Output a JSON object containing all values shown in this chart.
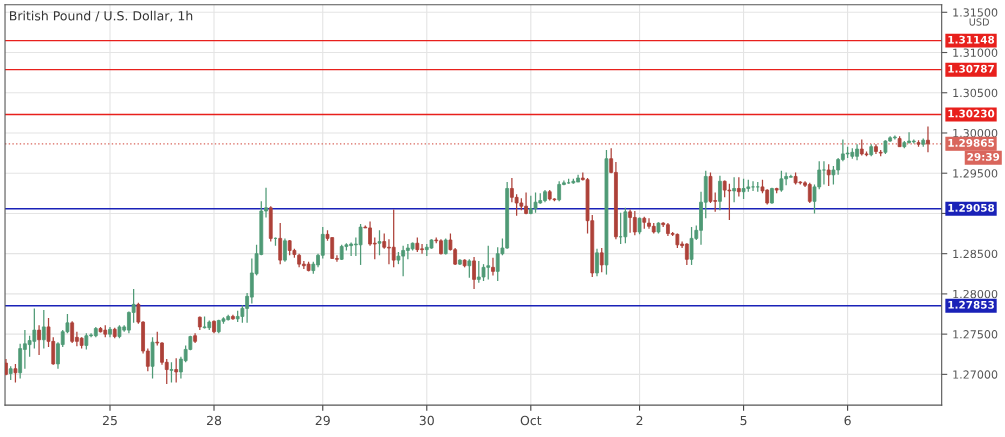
{
  "chart_data": {
    "type": "candlestick",
    "title": "British Pound / U.S. Dollar, 1h",
    "ylabel": "USD",
    "annotations": [
      "29:39"
    ],
    "grid": true,
    "categories": [
      null,
      null,
      null,
      null,
      null,
      null,
      null,
      null,
      null,
      null,
      null,
      null,
      null,
      null,
      null,
      null,
      null,
      null,
      null,
      null,
      null,
      null,
      "25",
      null,
      null,
      null,
      null,
      null,
      null,
      null,
      null,
      null,
      null,
      null,
      null,
      null,
      null,
      null,
      null,
      null,
      null,
      null,
      null,
      null,
      "28",
      null,
      null,
      null,
      null,
      null,
      null,
      null,
      null,
      null,
      null,
      null,
      null,
      null,
      null,
      null,
      null,
      null,
      null,
      null,
      null,
      null,
      null,
      "29",
      null,
      null,
      null,
      null,
      null,
      null,
      null,
      null,
      null,
      null,
      null,
      null,
      null,
      null,
      null,
      null,
      null,
      null,
      null,
      null,
      null,
      "30",
      null,
      null,
      null,
      null,
      null,
      null,
      null,
      null,
      null,
      null,
      null,
      null,
      null,
      null,
      null,
      null,
      null,
      null,
      null,
      null,
      null,
      "Oct",
      null,
      null,
      null,
      null,
      null,
      null,
      null,
      null,
      null,
      null,
      null,
      null,
      null,
      null,
      null,
      null,
      null,
      null,
      null,
      null,
      null,
      null,
      "2",
      null,
      null,
      null,
      null,
      null,
      null,
      null,
      null,
      null,
      null,
      null,
      null,
      null,
      null,
      null,
      null,
      null,
      null,
      null,
      null,
      null,
      "5",
      null,
      null,
      null,
      null,
      null,
      null,
      null,
      null,
      null,
      null,
      null,
      null,
      null,
      null,
      null,
      null,
      null,
      null,
      null,
      null,
      null,
      "6",
      null,
      null,
      null,
      null,
      null,
      null,
      null,
      null,
      null,
      null,
      null,
      null,
      null,
      null,
      null,
      null,
      null
    ],
    "ylim": [
      1.26618,
      1.31593
    ],
    "yticks": [
      {
        "value": 1.27,
        "label": "1.27000"
      },
      {
        "value": 1.275,
        "label": "1.27500"
      },
      {
        "value": 1.28,
        "label": "1.28000"
      },
      {
        "value": 1.285,
        "label": "1.28500"
      },
      {
        "value": 1.29,
        "label": null
      },
      {
        "value": 1.295,
        "label": "1.29500"
      },
      {
        "value": 1.3,
        "label": "1.30000"
      },
      {
        "value": 1.305,
        "label": "1.30500"
      },
      {
        "value": 1.31,
        "label": "1.31000"
      },
      {
        "value": 1.315,
        "label": "1.31500"
      }
    ],
    "ref_lines": [
      {
        "axis": "y",
        "value": 1.31148,
        "label": "1.31148",
        "color": "#e8201c"
      },
      {
        "axis": "y",
        "value": 1.30787,
        "label": "1.30787",
        "color": "#e8201c"
      },
      {
        "axis": "y",
        "value": 1.3023,
        "label": "1.30230",
        "color": "#e8201c"
      },
      {
        "axis": "y",
        "value": 1.29865,
        "label": "1.29865",
        "color": "#d9665c",
        "line_style": "dotted"
      },
      {
        "axis": "y",
        "value": 1.29058,
        "label": "1.29058",
        "color": "#1a22b8"
      },
      {
        "axis": "y",
        "value": 1.27853,
        "label": "1.27853",
        "color": "#1a22b8"
      }
    ],
    "ohlc": [
      [
        1.2714,
        1.2719,
        1.2699,
        1.27
      ],
      [
        1.2701,
        1.271,
        1.2693,
        1.2707
      ],
      [
        1.2707,
        1.2713,
        1.269,
        1.2702
      ],
      [
        1.2702,
        1.2738,
        1.2695,
        1.2732
      ],
      [
        1.2731,
        1.2755,
        1.2707,
        1.2738
      ],
      [
        1.2737,
        1.2748,
        1.2722,
        1.2742
      ],
      [
        1.2741,
        1.2782,
        1.2732,
        1.2755
      ],
      [
        1.2755,
        1.2761,
        1.2724,
        1.2743
      ],
      [
        1.2743,
        1.278,
        1.2732,
        1.2759
      ],
      [
        1.2759,
        1.277,
        1.2734,
        1.2741
      ],
      [
        1.2741,
        1.2746,
        1.2712,
        1.2713
      ],
      [
        1.2713,
        1.274,
        1.2707,
        1.2738
      ],
      [
        1.2737,
        1.2755,
        1.2734,
        1.2753
      ],
      [
        1.2753,
        1.2775,
        1.2751,
        1.2764
      ],
      [
        1.2764,
        1.2766,
        1.2739,
        1.2741
      ],
      [
        1.2746,
        1.2753,
        1.2735,
        1.2741
      ],
      [
        1.2745,
        1.2746,
        1.2732,
        1.2736
      ],
      [
        1.2736,
        1.2751,
        1.2731,
        1.2748
      ],
      [
        1.2748,
        1.2751,
        1.2746,
        1.2749
      ],
      [
        1.2748,
        1.2759,
        1.2746,
        1.2757
      ],
      [
        1.2757,
        1.2759,
        1.2752,
        1.2753
      ],
      [
        1.2755,
        1.2761,
        1.2746,
        1.275
      ],
      [
        1.275,
        1.2759,
        1.2746,
        1.2756
      ],
      [
        1.2756,
        1.2758,
        1.2745,
        1.2747
      ],
      [
        1.2747,
        1.2761,
        1.2745,
        1.2759
      ],
      [
        1.2755,
        1.2761,
        1.2753,
        1.2759
      ],
      [
        1.2755,
        1.2778,
        1.2751,
        1.2777
      ],
      [
        1.2777,
        1.2806,
        1.2764,
        1.2787
      ],
      [
        1.2787,
        1.2789,
        1.2763,
        1.2765
      ],
      [
        1.2765,
        1.2766,
        1.2726,
        1.2729
      ],
      [
        1.2729,
        1.2732,
        1.2704,
        1.271
      ],
      [
        1.271,
        1.2746,
        1.2695,
        1.274
      ],
      [
        1.274,
        1.2753,
        1.2736,
        1.2739
      ],
      [
        1.2739,
        1.274,
        1.2712,
        1.2715
      ],
      [
        1.2715,
        1.2719,
        1.2688,
        1.2706
      ],
      [
        1.2705,
        1.2715,
        1.269,
        1.2706
      ],
      [
        1.2706,
        1.272,
        1.269,
        1.2703
      ],
      [
        1.2703,
        1.2722,
        1.2695,
        1.2719
      ],
      [
        1.2717,
        1.2736,
        1.2715,
        1.2731
      ],
      [
        1.2731,
        1.2748,
        1.273,
        1.2747
      ],
      [
        1.2748,
        1.2751,
        1.2739,
        1.2741
      ],
      [
        1.2771,
        1.2772,
        1.2755,
        1.2759
      ],
      [
        1.2758,
        1.2772,
        1.2757,
        1.2759
      ],
      [
        1.2758,
        1.2767,
        1.2755,
        1.2765
      ],
      [
        1.2766,
        1.2767,
        1.2751,
        1.2753
      ],
      [
        1.2753,
        1.2768,
        1.2751,
        1.2767
      ],
      [
        1.2766,
        1.2771,
        1.2763,
        1.2769
      ],
      [
        1.2768,
        1.2774,
        1.2767,
        1.2772
      ],
      [
        1.2772,
        1.2774,
        1.2768,
        1.2769
      ],
      [
        1.2769,
        1.2779,
        1.2765,
        1.2772
      ],
      [
        1.2772,
        1.2786,
        1.2764,
        1.2782
      ],
      [
        1.2782,
        1.2801,
        1.2764,
        1.2797
      ],
      [
        1.2796,
        1.2844,
        1.2788,
        1.2826
      ],
      [
        1.2825,
        1.2861,
        1.2823,
        1.285
      ],
      [
        1.2849,
        1.2915,
        1.2848,
        1.2903
      ],
      [
        1.2903,
        1.2932,
        1.2895,
        1.2907
      ],
      [
        1.2907,
        1.2909,
        1.2865,
        1.2869
      ],
      [
        1.2869,
        1.287,
        1.286,
        1.2869
      ],
      [
        1.2869,
        1.2888,
        1.2837,
        1.2842
      ],
      [
        1.2842,
        1.2869,
        1.284,
        1.2866
      ],
      [
        1.2866,
        1.2867,
        1.2848,
        1.2854
      ],
      [
        1.2854,
        1.2856,
        1.2845,
        1.2849
      ],
      [
        1.2848,
        1.285,
        1.2833,
        1.2837
      ],
      [
        1.2837,
        1.2841,
        1.2831,
        1.2835
      ],
      [
        1.2837,
        1.284,
        1.2828,
        1.2829
      ],
      [
        1.2829,
        1.284,
        1.2825,
        1.2837
      ],
      [
        1.2836,
        1.285,
        1.2833,
        1.2848
      ],
      [
        1.2848,
        1.2883,
        1.2844,
        1.2874
      ],
      [
        1.2874,
        1.2879,
        1.2866,
        1.2869
      ],
      [
        1.287,
        1.287,
        1.2844,
        1.2844
      ],
      [
        1.2844,
        1.2848,
        1.284,
        1.2843
      ],
      [
        1.2843,
        1.2861,
        1.2842,
        1.2859
      ],
      [
        1.2859,
        1.2863,
        1.2854,
        1.2861
      ],
      [
        1.286,
        1.2864,
        1.2847,
        1.2862
      ],
      [
        1.2861,
        1.287,
        1.2847,
        1.2862
      ],
      [
        1.2861,
        1.2887,
        1.2836,
        1.2883
      ],
      [
        1.2883,
        1.2885,
        1.2882,
        1.2882
      ],
      [
        1.2882,
        1.289,
        1.286,
        1.2862
      ],
      [
        1.2863,
        1.287,
        1.2843,
        1.2862
      ],
      [
        1.2863,
        1.2879,
        1.2848,
        1.2865
      ],
      [
        1.2865,
        1.2875,
        1.2856,
        1.2858
      ],
      [
        1.2858,
        1.2868,
        1.2837,
        1.2857
      ],
      [
        1.2858,
        1.2905,
        1.2833,
        1.2842
      ],
      [
        1.2842,
        1.2852,
        1.2837,
        1.2847
      ],
      [
        1.2847,
        1.286,
        1.2822,
        1.2854
      ],
      [
        1.2854,
        1.2862,
        1.2843,
        1.2857
      ],
      [
        1.2856,
        1.2864,
        1.2854,
        1.2863
      ],
      [
        1.2863,
        1.287,
        1.2852,
        1.2855
      ],
      [
        1.2856,
        1.2862,
        1.285,
        1.2855
      ],
      [
        1.2855,
        1.2862,
        1.2847,
        1.2858
      ],
      [
        1.2857,
        1.2868,
        1.2856,
        1.2867
      ],
      [
        1.2867,
        1.287,
        1.2863,
        1.2866
      ],
      [
        1.2866,
        1.2868,
        1.2849,
        1.285
      ],
      [
        1.285,
        1.2869,
        1.2849,
        1.2867
      ],
      [
        1.2867,
        1.2875,
        1.2854,
        1.2855
      ],
      [
        1.2855,
        1.2857,
        1.2836,
        1.2837
      ],
      [
        1.2837,
        1.2843,
        1.2836,
        1.2842
      ],
      [
        1.2842,
        1.2843,
        1.2833,
        1.2835
      ],
      [
        1.2835,
        1.2843,
        1.282,
        1.2841
      ],
      [
        1.2841,
        1.2846,
        1.2806,
        1.2818
      ],
      [
        1.2818,
        1.2841,
        1.2814,
        1.2821
      ],
      [
        1.2821,
        1.2837,
        1.2816,
        1.2833
      ],
      [
        1.2833,
        1.286,
        1.2818,
        1.2835
      ],
      [
        1.2833,
        1.2845,
        1.2823,
        1.2828
      ],
      [
        1.2828,
        1.2858,
        1.2816,
        1.285
      ],
      [
        1.285,
        1.2869,
        1.2848,
        1.2857
      ],
      [
        1.2857,
        1.2939,
        1.2856,
        1.2931
      ],
      [
        1.2931,
        1.2944,
        1.2914,
        1.292
      ],
      [
        1.292,
        1.2924,
        1.2897,
        1.2913
      ],
      [
        1.2913,
        1.2919,
        1.2904,
        1.2909
      ],
      [
        1.2909,
        1.2926,
        1.2899,
        1.29
      ],
      [
        1.29,
        1.2922,
        1.2899,
        1.2906
      ],
      [
        1.2906,
        1.2926,
        1.2901,
        1.2914
      ],
      [
        1.2913,
        1.2925,
        1.2912,
        1.2916
      ],
      [
        1.2916,
        1.2929,
        1.2914,
        1.2927
      ],
      [
        1.2927,
        1.2929,
        1.2916,
        1.2918
      ],
      [
        1.2918,
        1.2919,
        1.2915,
        1.2917
      ],
      [
        1.2917,
        1.294,
        1.2915,
        1.2936
      ],
      [
        1.2936,
        1.2941,
        1.2935,
        1.2938
      ],
      [
        1.2938,
        1.2943,
        1.2937,
        1.2938
      ],
      [
        1.2938,
        1.2943,
        1.2937,
        1.294
      ],
      [
        1.2939,
        1.2948,
        1.2939,
        1.2944
      ],
      [
        1.2944,
        1.2951,
        1.2941,
        1.2942
      ],
      [
        1.2942,
        1.2944,
        1.2875,
        1.2891
      ],
      [
        1.2891,
        1.2898,
        1.2821,
        1.2826
      ],
      [
        1.2826,
        1.2856,
        1.2822,
        1.2851
      ],
      [
        1.2851,
        1.2857,
        1.2827,
        1.2836
      ],
      [
        1.2836,
        1.2979,
        1.2824,
        1.2968
      ],
      [
        1.2968,
        1.2981,
        1.295,
        1.2951
      ],
      [
        1.2951,
        1.2964,
        1.2868,
        1.2871
      ],
      [
        1.2871,
        1.2901,
        1.2862,
        1.2871
      ],
      [
        1.2871,
        1.2907,
        1.2863,
        1.2902
      ],
      [
        1.2902,
        1.2905,
        1.2876,
        1.2895
      ],
      [
        1.2895,
        1.2903,
        1.2873,
        1.2877
      ],
      [
        1.2877,
        1.2895,
        1.2874,
        1.2894
      ],
      [
        1.2894,
        1.2896,
        1.2881,
        1.2889
      ],
      [
        1.2888,
        1.2894,
        1.2881,
        1.2884
      ],
      [
        1.2884,
        1.2888,
        1.2875,
        1.2877
      ],
      [
        1.2877,
        1.2889,
        1.2875,
        1.2888
      ],
      [
        1.2888,
        1.2889,
        1.2883,
        1.2886
      ],
      [
        1.2886,
        1.2888,
        1.2872,
        1.2875
      ],
      [
        1.2875,
        1.2877,
        1.2872,
        1.2874
      ],
      [
        1.2874,
        1.2875,
        1.2857,
        1.2861
      ],
      [
        1.2862,
        1.2865,
        1.2857,
        1.286
      ],
      [
        1.2862,
        1.2863,
        1.2836,
        1.2843
      ],
      [
        1.2843,
        1.2883,
        1.2836,
        1.2869
      ],
      [
        1.2869,
        1.2885,
        1.2867,
        1.2879
      ],
      [
        1.2879,
        1.2927,
        1.2861,
        1.2914
      ],
      [
        1.2914,
        1.2953,
        1.2894,
        1.2946
      ],
      [
        1.2946,
        1.2951,
        1.2913,
        1.2915
      ],
      [
        1.2916,
        1.2926,
        1.2902,
        1.2915
      ],
      [
        1.2915,
        1.2947,
        1.2904,
        1.294
      ],
      [
        1.294,
        1.2941,
        1.292,
        1.2929
      ],
      [
        1.2929,
        1.2937,
        1.2892,
        1.2928
      ],
      [
        1.2928,
        1.2945,
        1.2914,
        1.2931
      ],
      [
        1.2931,
        1.2945,
        1.2921,
        1.2927
      ],
      [
        1.2927,
        1.2943,
        1.2918,
        1.2931
      ],
      [
        1.2931,
        1.2942,
        1.2927,
        1.2933
      ],
      [
        1.2933,
        1.294,
        1.2928,
        1.2933
      ],
      [
        1.2933,
        1.2939,
        1.2927,
        1.2933
      ],
      [
        1.2933,
        1.2942,
        1.2925,
        1.2928
      ],
      [
        1.2929,
        1.293,
        1.2911,
        1.2913
      ],
      [
        1.2913,
        1.2932,
        1.2912,
        1.2931
      ],
      [
        1.2931,
        1.2932,
        1.2925,
        1.2929
      ],
      [
        1.2929,
        1.2953,
        1.2927,
        1.2943
      ],
      [
        1.2943,
        1.2951,
        1.2935,
        1.2946
      ],
      [
        1.2945,
        1.2948,
        1.2945,
        1.2946
      ],
      [
        1.2946,
        1.2951,
        1.2936,
        1.2938
      ],
      [
        1.2939,
        1.294,
        1.2936,
        1.2938
      ],
      [
        1.2938,
        1.294,
        1.2933,
        1.2935
      ],
      [
        1.2936,
        1.2938,
        1.2913,
        1.2915
      ],
      [
        1.2915,
        1.2936,
        1.29,
        1.2933
      ],
      [
        1.2933,
        1.2965,
        1.293,
        1.2954
      ],
      [
        1.2954,
        1.2965,
        1.2936,
        1.2954
      ],
      [
        1.2954,
        1.2961,
        1.2934,
        1.2948
      ],
      [
        1.2948,
        1.2959,
        1.2936,
        1.2954
      ],
      [
        1.2954,
        1.2969,
        1.2948,
        1.2967
      ],
      [
        1.2967,
        1.2992,
        1.2965,
        1.2974
      ],
      [
        1.2974,
        1.2983,
        1.2969,
        1.2975
      ],
      [
        1.2971,
        1.2981,
        1.2968,
        1.2976
      ],
      [
        1.2971,
        1.2986,
        1.2966,
        1.298
      ],
      [
        1.298,
        1.2992,
        1.2972,
        1.2974
      ],
      [
        1.2974,
        1.2977,
        1.2971,
        1.2973
      ],
      [
        1.2973,
        1.2986,
        1.2971,
        1.2983
      ],
      [
        1.2983,
        1.2986,
        1.2974,
        1.2977
      ],
      [
        1.2976,
        1.2979,
        1.2971,
        1.2975
      ],
      [
        1.2976,
        1.2991,
        1.2974,
        1.299
      ],
      [
        1.299,
        1.2996,
        1.2989,
        1.2994
      ],
      [
        1.2994,
        1.2997,
        1.2992,
        1.2995
      ],
      [
        1.2993,
        1.2996,
        1.2983,
        1.2983
      ],
      [
        1.2983,
        1.299,
        1.2981,
        1.2988
      ],
      [
        1.2988,
        1.3001,
        1.2987,
        1.299
      ],
      [
        1.2989,
        1.2992,
        1.2987,
        1.299
      ],
      [
        1.2988,
        1.2991,
        1.2983,
        1.2986
      ],
      [
        1.2986,
        1.2993,
        1.2983,
        1.2991
      ],
      [
        1.2991,
        1.3008,
        1.2976,
        1.29865
      ]
    ]
  }
}
